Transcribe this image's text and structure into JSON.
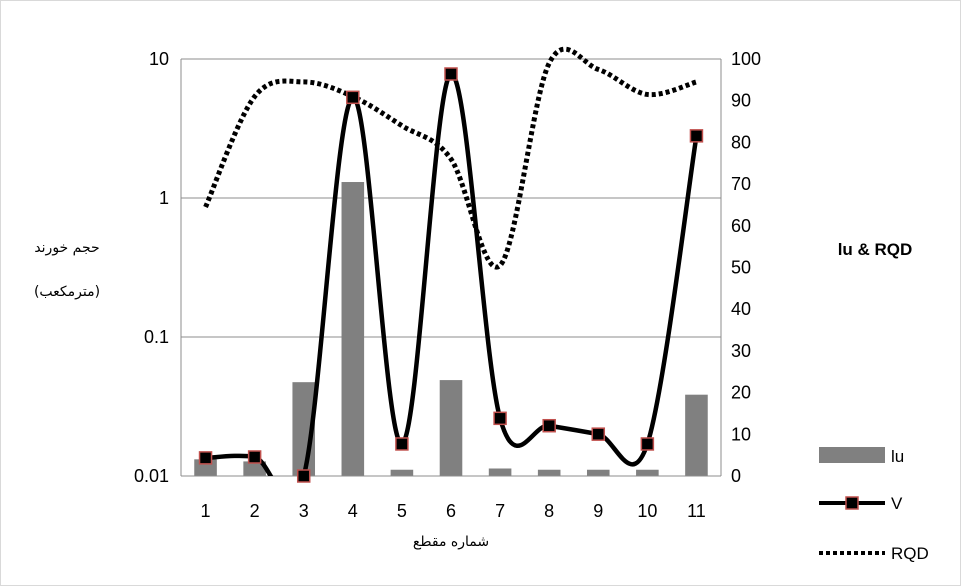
{
  "chart_data": {
    "type": "bar",
    "categories": [
      "1",
      "2",
      "3",
      "4",
      "5",
      "6",
      "7",
      "8",
      "9",
      "10",
      "11"
    ],
    "left_axis": {
      "scale": "log",
      "range": [
        0.01,
        10
      ],
      "ticks": [
        "10",
        "1",
        "0.1",
        "0.01"
      ],
      "title_lines": [
        "حجم خورند",
        "(مترمکعب)"
      ]
    },
    "right_axis": {
      "scale": "linear",
      "range": [
        0,
        100
      ],
      "ticks": [
        "100",
        "90",
        "80",
        "70",
        "60",
        "50",
        "40",
        "30",
        "20",
        "10",
        "0"
      ],
      "title": "lu & RQD"
    },
    "xlabel": "شماره مقطع",
    "grid": true,
    "legend_position": "right",
    "series": [
      {
        "name": "lu",
        "kind": "bar",
        "axis": "right",
        "color": "#808080",
        "values": [
          4,
          3.5,
          22.5,
          70.5,
          1.5,
          23,
          1.8,
          1.5,
          1.5,
          1.5,
          19.5
        ]
      },
      {
        "name": "V",
        "kind": "line",
        "axis": "left",
        "color": "#000000",
        "marker_fill": "#000000",
        "marker_edge": "#c0504d",
        "values": [
          0.0135,
          0.0137,
          0.01,
          5.3,
          0.017,
          7.8,
          0.026,
          0.023,
          0.02,
          0.017,
          2.8
        ]
      },
      {
        "name": "RQD",
        "kind": "line",
        "axis": "right",
        "style": "dotted",
        "color": "#000000",
        "values": [
          64.5,
          91,
          94.5,
          91,
          84,
          76,
          50.5,
          99,
          97.5,
          91.5,
          94.5
        ]
      }
    ]
  }
}
